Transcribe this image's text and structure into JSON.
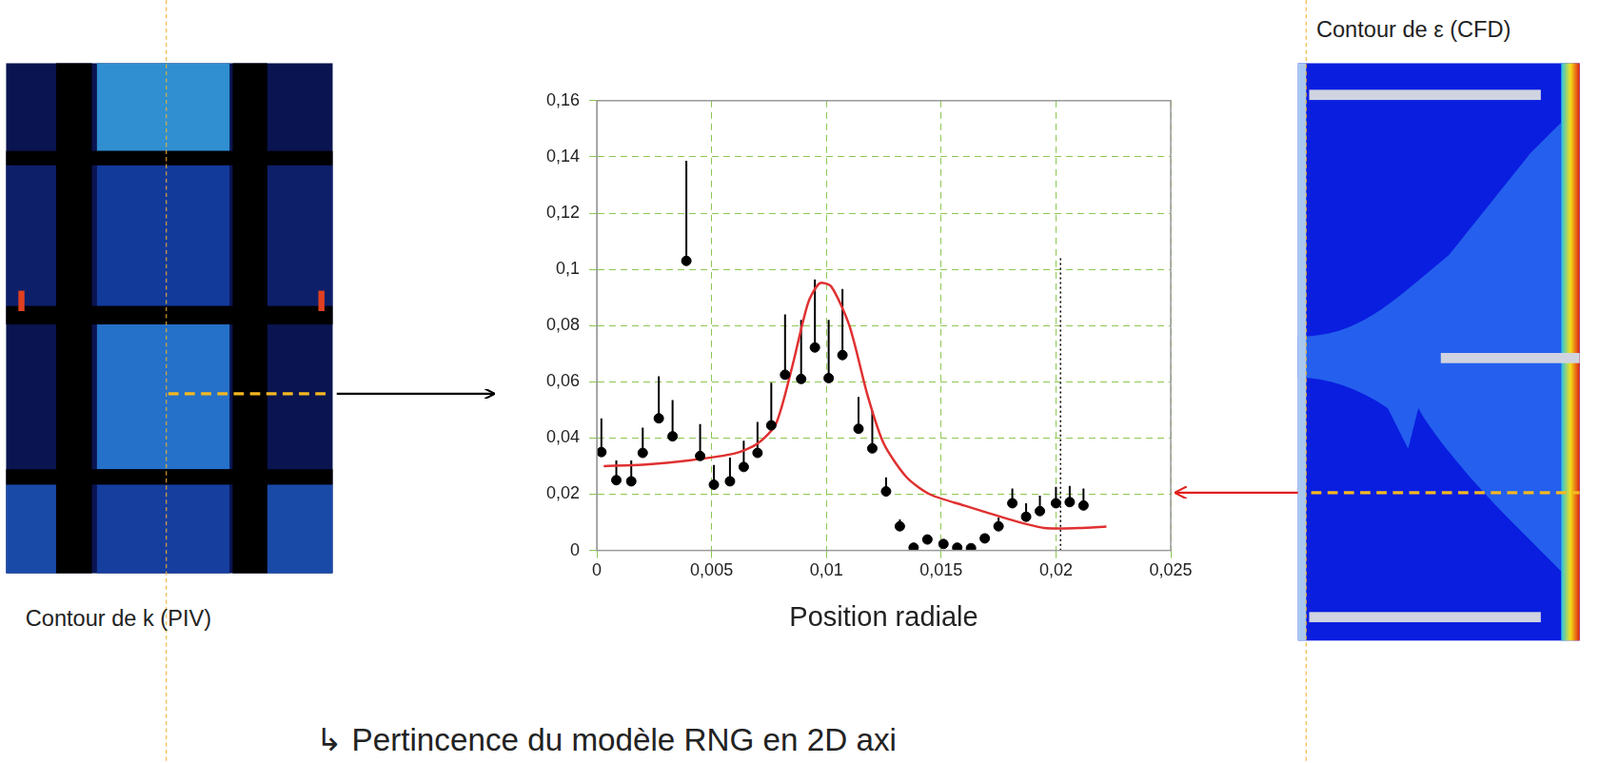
{
  "chart_data": {
    "type": "scatter",
    "x_label": "Position radiale",
    "xlim": [
      0,
      0.025
    ],
    "xticks": [
      0,
      {
        "value": 0.005,
        "label": "0,005"
      },
      {
        "value": 0.01,
        "label": "0,01"
      },
      {
        "value": 0.015,
        "label": "0,015"
      },
      {
        "value": 0.02,
        "label": "0,02"
      },
      {
        "value": 0.025,
        "label": "0,025"
      }
    ],
    "ylim": [
      0,
      0.16
    ],
    "yticks": [
      0,
      {
        "value": 0.02,
        "label": "0,02"
      },
      {
        "value": 0.04,
        "label": "0,04"
      },
      {
        "value": 0.06,
        "label": "0,06"
      },
      {
        "value": 0.08,
        "label": "0,08"
      },
      {
        "value": 0.1,
        "label": "0,1"
      },
      {
        "value": 0.12,
        "label": "0,12"
      },
      {
        "value": 0.14,
        "label": "0,14"
      },
      {
        "value": 0.16,
        "label": "0,16"
      }
    ],
    "grid": true,
    "series": [
      {
        "type": "scatter",
        "color": "#000000",
        "marker": "circle",
        "x": [
          0.0002,
          0.00085,
          0.0015,
          0.002,
          0.0027,
          0.0033,
          0.0039,
          0.0045,
          0.0051,
          0.0058,
          0.0064,
          0.007,
          0.0076,
          0.0082,
          0.0089,
          0.0095,
          0.0101,
          0.0107,
          0.0114,
          0.012,
          0.0126,
          0.0132,
          0.0138,
          0.0144,
          0.0151,
          0.0157,
          0.0163,
          0.0169,
          0.0175,
          0.0181,
          0.0187,
          0.0193,
          0.02,
          0.0206,
          0.0212
        ],
        "values": [
          0.035,
          0.025,
          0.0246,
          0.0347,
          0.047,
          0.0406,
          0.103,
          0.0336,
          0.0234,
          0.0246,
          0.0297,
          0.0347,
          0.0445,
          0.0625,
          0.061,
          0.0722,
          0.0613,
          0.0695,
          0.0433,
          0.0363,
          0.021,
          0.0086,
          0.001,
          0.0039,
          0.0023,
          0.001,
          0.0008,
          0.0043,
          0.0086,
          0.0168,
          0.012,
          0.014,
          0.0168,
          0.0172,
          0.016
        ],
        "error_upper": [
          0.012,
          0.007,
          0.0074,
          0.009,
          0.015,
          0.0129,
          0.0356,
          0.0114,
          0.007,
          0.0084,
          0.0093,
          0.011,
          0.0152,
          0.0215,
          0.021,
          0.0242,
          0.0207,
          0.0235,
          0.0113,
          0.0133,
          0.005,
          0.0024,
          null,
          null,
          null,
          null,
          null,
          null,
          0.0031,
          0.0052,
          0.0048,
          0.0055,
          0.0058,
          0.0058,
          0.006
        ]
      },
      {
        "type": "line",
        "color": "#e03030",
        "line_style": "solid",
        "x": [
          0.0003,
          0.002,
          0.004,
          0.006,
          0.007,
          0.0078,
          0.0085,
          0.0092,
          0.0097,
          0.0102,
          0.011,
          0.0118,
          0.0125,
          0.0135,
          0.0145,
          0.016,
          0.018,
          0.0195,
          0.021,
          0.0222
        ],
        "values": [
          0.03,
          0.0305,
          0.032,
          0.0345,
          0.038,
          0.045,
          0.065,
          0.088,
          0.095,
          0.094,
          0.08,
          0.055,
          0.038,
          0.026,
          0.02,
          0.016,
          0.011,
          0.008,
          0.008,
          0.0085
        ]
      },
      {
        "type": "line",
        "color": "#000000",
        "line_style": "dotted",
        "x": [
          0.0202,
          0.0202
        ],
        "values": [
          0,
          0.104
        ]
      }
    ]
  },
  "left_panel": {
    "label": "Contour de k (PIV)"
  },
  "right_panel": {
    "label": "Contour de ε (CFD)"
  },
  "caption": "↳ Pertincence du modèle RNG en 2D axi"
}
